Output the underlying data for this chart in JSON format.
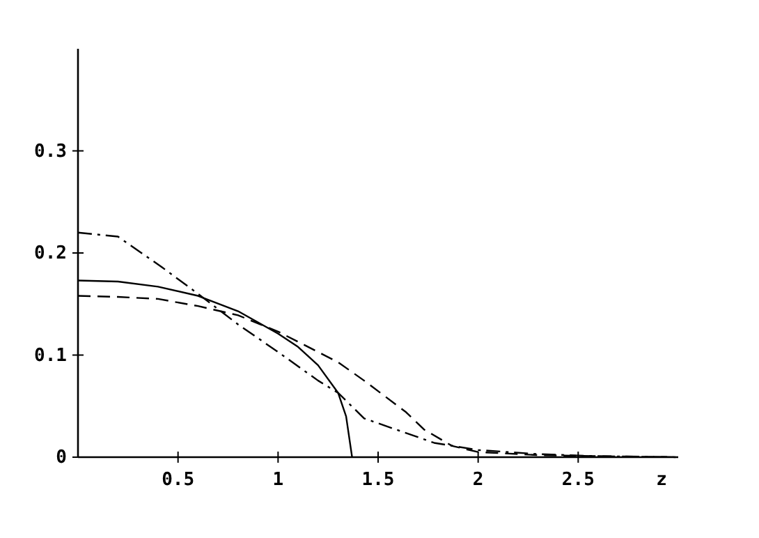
{
  "chart_data": {
    "type": "line",
    "xlabel": "z",
    "xlim": [
      0,
      3
    ],
    "ylim": [
      0,
      0.4
    ],
    "xticks": [
      0.5,
      1,
      1.5,
      2,
      2.5
    ],
    "yticks": [
      0,
      0.1,
      0.2,
      0.3
    ],
    "grid": false,
    "marker": "none",
    "series": [
      {
        "color": "#000000",
        "line_style": "solid",
        "x": [
          0,
          0.2,
          0.4,
          0.6,
          0.8,
          1.0,
          1.1,
          1.2,
          1.3,
          1.34,
          1.37
        ],
        "values": [
          0.173,
          0.172,
          0.167,
          0.158,
          0.143,
          0.121,
          0.108,
          0.09,
          0.063,
          0.04,
          0
        ]
      },
      {
        "color": "#000000",
        "line_style": "dashed",
        "x": [
          0,
          0.2,
          0.4,
          0.6,
          0.8,
          1.0,
          1.2,
          1.3,
          1.43,
          1.64,
          1.73,
          1.87,
          2.0,
          2.3,
          2.6,
          3.0
        ],
        "values": [
          0.158,
          0.157,
          0.155,
          0.148,
          0.139,
          0.123,
          0.103,
          0.093,
          0.075,
          0.044,
          0.027,
          0.011,
          0.005,
          0.002,
          0.001,
          0
        ]
      },
      {
        "color": "#000000",
        "line_style": "dashdot",
        "x": [
          0,
          0.2,
          0.42,
          0.6,
          0.8,
          1.0,
          1.2,
          1.3,
          1.43,
          1.78,
          2.0,
          2.3,
          2.6,
          3.0
        ],
        "values": [
          0.22,
          0.216,
          0.186,
          0.16,
          0.13,
          0.103,
          0.075,
          0.063,
          0.038,
          0.014,
          0.007,
          0.003,
          0.001,
          0
        ]
      }
    ]
  }
}
